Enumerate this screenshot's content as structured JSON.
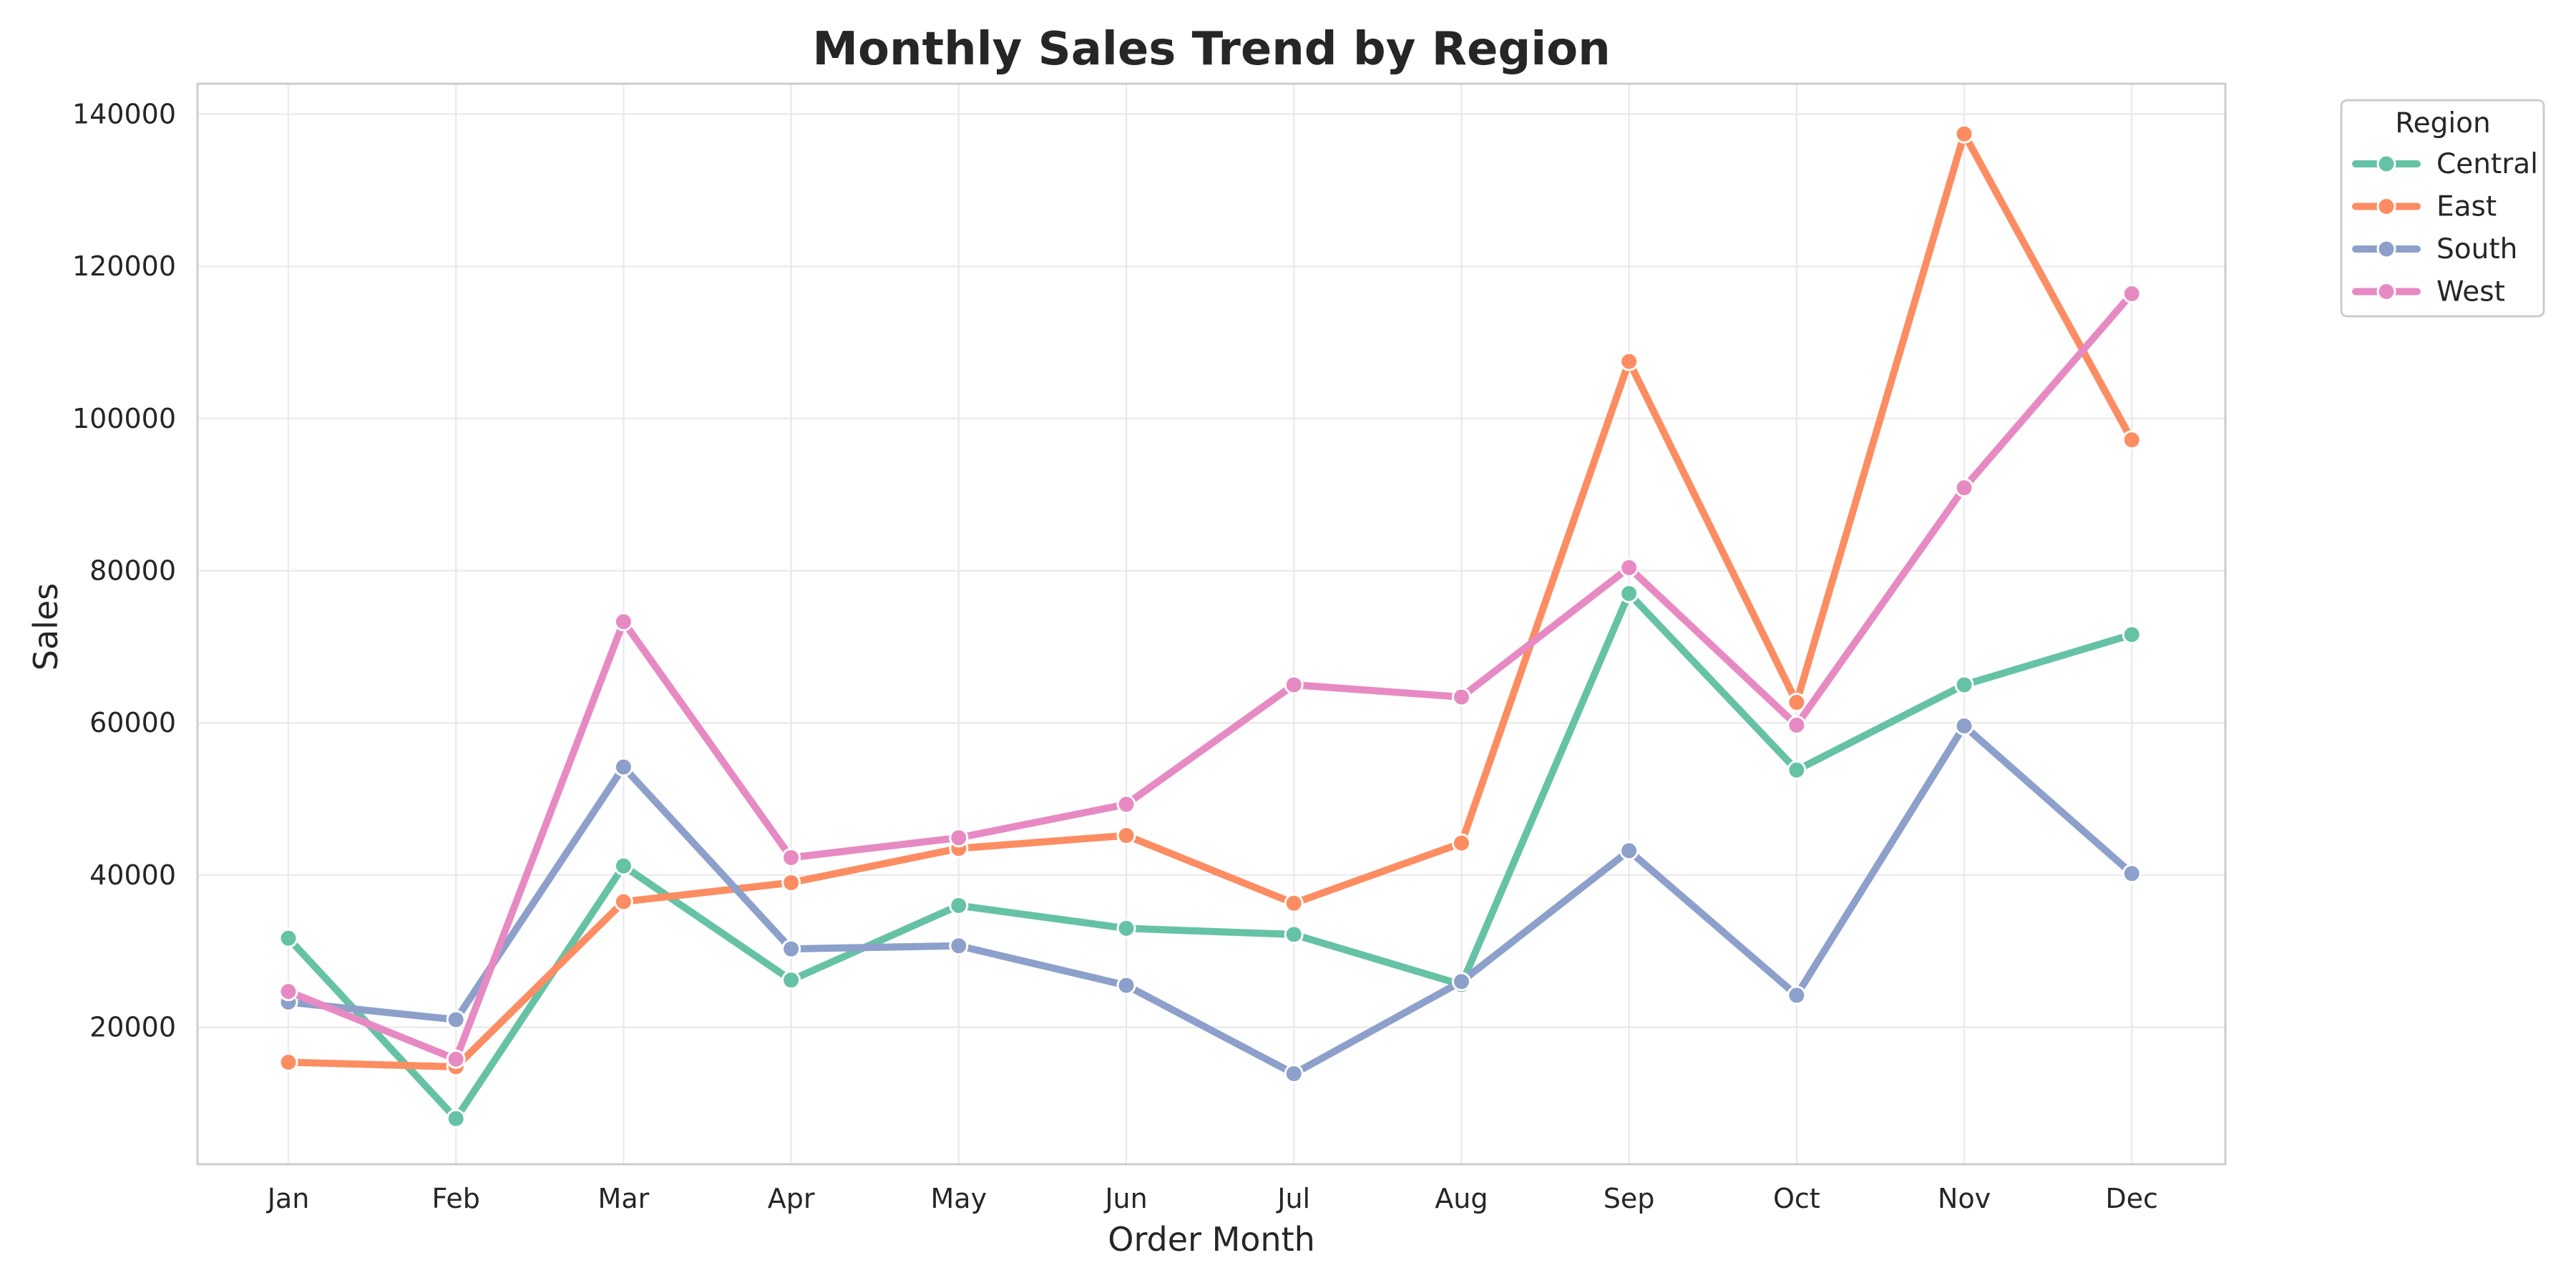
{
  "chart_data": {
    "type": "line",
    "title": "Monthly Sales Trend by Region",
    "xlabel": "Order Month",
    "ylabel": "Sales",
    "categories": [
      "Jan",
      "Feb",
      "Mar",
      "Apr",
      "May",
      "Jun",
      "Jul",
      "Aug",
      "Sep",
      "Oct",
      "Nov",
      "Dec"
    ],
    "ylim": [
      2000,
      144000
    ],
    "yticks": [
      20000,
      40000,
      60000,
      80000,
      100000,
      120000,
      140000
    ],
    "grid": true,
    "legend": {
      "title": "Region",
      "placement": "outside-top-right"
    },
    "series": [
      {
        "name": "Central",
        "color": "#66c2a5",
        "values": [
          31700,
          8000,
          41200,
          26200,
          36000,
          33000,
          32200,
          25600,
          77000,
          53800,
          65000,
          71600
        ]
      },
      {
        "name": "East",
        "color": "#fc8d62",
        "values": [
          15400,
          14800,
          36500,
          39000,
          43500,
          45200,
          36300,
          44200,
          107500,
          62700,
          137400,
          97200
        ]
      },
      {
        "name": "South",
        "color": "#8da0cb",
        "values": [
          23300,
          21000,
          54200,
          30300,
          30700,
          25500,
          13900,
          26000,
          43200,
          24200,
          59600,
          40200
        ]
      },
      {
        "name": "West",
        "color": "#e78ac3",
        "values": [
          24700,
          15800,
          73300,
          42300,
          44900,
          49300,
          65000,
          63400,
          80400,
          59700,
          90900,
          116400
        ]
      }
    ]
  }
}
